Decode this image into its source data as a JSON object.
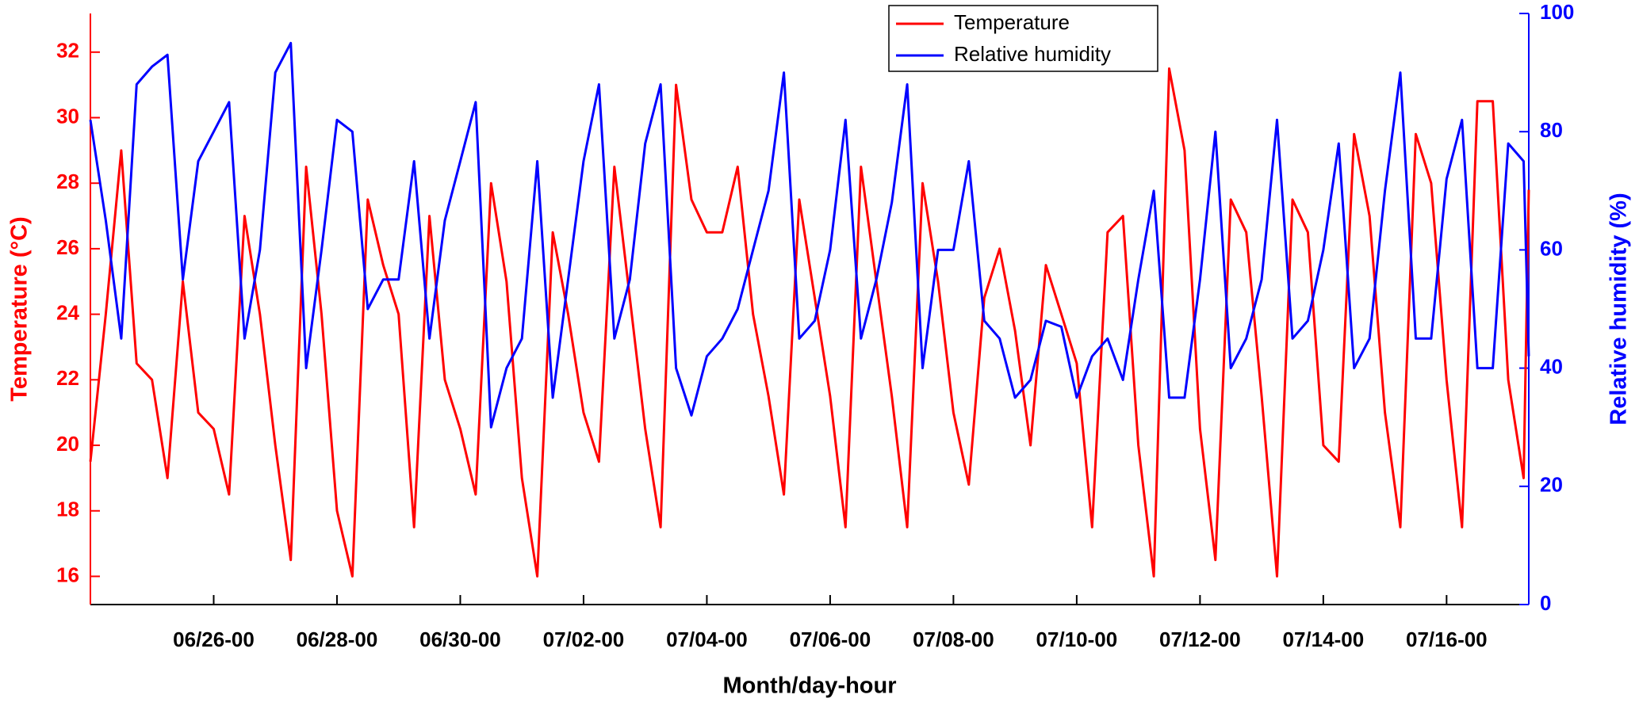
{
  "chart_data": {
    "type": "line",
    "x_label": "Month/day-hour",
    "y_label": "Temperature (°C)",
    "y2_label": "Relative humidity (%)",
    "x": [
      "06/24-00",
      "06/24-06",
      "06/24-12",
      "06/24-18",
      "06/25-00",
      "06/25-06",
      "06/25-12",
      "06/25-18",
      "06/26-00",
      "06/26-06",
      "06/26-12",
      "06/26-18",
      "06/27-00",
      "06/27-06",
      "06/27-12",
      "06/27-18",
      "06/28-00",
      "06/28-06",
      "06/28-12",
      "06/28-18",
      "06/29-00",
      "06/29-06",
      "06/29-12",
      "06/29-18",
      "06/30-00",
      "06/30-06",
      "06/30-12",
      "06/30-18",
      "07/01-00",
      "07/01-06",
      "07/01-12",
      "07/01-18",
      "07/02-00",
      "07/02-06",
      "07/02-12",
      "07/02-18",
      "07/03-00",
      "07/03-06",
      "07/03-12",
      "07/03-18",
      "07/04-00",
      "07/04-06",
      "07/04-12",
      "07/04-18",
      "07/05-00",
      "07/05-06",
      "07/05-12",
      "07/05-18",
      "07/06-00",
      "07/06-06",
      "07/06-12",
      "07/06-18",
      "07/07-00",
      "07/07-06",
      "07/07-12",
      "07/07-18",
      "07/08-00",
      "07/08-06",
      "07/08-12",
      "07/08-18",
      "07/09-00",
      "07/09-06",
      "07/09-12",
      "07/09-18",
      "07/10-00",
      "07/10-06",
      "07/10-12",
      "07/10-18",
      "07/11-00",
      "07/11-06",
      "07/11-12",
      "07/11-18",
      "07/12-00",
      "07/12-06",
      "07/12-12",
      "07/12-18",
      "07/13-00",
      "07/13-06",
      "07/13-12",
      "07/13-18",
      "07/14-00",
      "07/14-06",
      "07/14-12",
      "07/14-18",
      "07/15-00",
      "07/15-06",
      "07/15-12",
      "07/15-18",
      "07/16-00",
      "07/16-06",
      "07/16-12",
      "07/16-18",
      "07/17-00",
      "07/17-06",
      "07/17-08"
    ],
    "series": [
      {
        "name": "Temperature",
        "color": "#ff0000",
        "axis": "y",
        "values": [
          19.5,
          24,
          29,
          22.5,
          22,
          19,
          25,
          21,
          20.5,
          18.5,
          27,
          24,
          20,
          16.5,
          28.5,
          24,
          18,
          16,
          27.5,
          25.5,
          24,
          17.5,
          27,
          22,
          20.5,
          18.5,
          28,
          25,
          19,
          16,
          26.5,
          24,
          21,
          19.5,
          28.5,
          24.5,
          20.5,
          17.5,
          31,
          27.5,
          26.5,
          26.5,
          28.5,
          24,
          21.5,
          18.5,
          27.5,
          24.5,
          21.5,
          17.5,
          28.5,
          25,
          21.5,
          17.5,
          28,
          25,
          21,
          18.8,
          24.5,
          26,
          23.5,
          20,
          25.5,
          24,
          22.5,
          17.5,
          26.5,
          27,
          20,
          16,
          31.5,
          29,
          20.5,
          16.5,
          27.5,
          26.5,
          21.5,
          16,
          27.5,
          26.5,
          20,
          19.5,
          29.5,
          27,
          21,
          17.5,
          29.5,
          28,
          22,
          17.5,
          30.5,
          30.5,
          22,
          19,
          27.8
        ]
      },
      {
        "name": "Relative humidity",
        "color": "#0000ff",
        "axis": "y2",
        "values": [
          82,
          65,
          45,
          88,
          91,
          93,
          55,
          75,
          80,
          85,
          45,
          60,
          90,
          95,
          40,
          60,
          82,
          80,
          50,
          55,
          55,
          75,
          45,
          65,
          75,
          85,
          30,
          40,
          45,
          75,
          35,
          55,
          75,
          88,
          45,
          55,
          78,
          88,
          40,
          32,
          42,
          45,
          50,
          60,
          70,
          90,
          45,
          48,
          60,
          82,
          45,
          55,
          68,
          88,
          40,
          60,
          60,
          75,
          48,
          45,
          35,
          38,
          48,
          47,
          35,
          42,
          45,
          38,
          55,
          70,
          35,
          35,
          55,
          80,
          40,
          45,
          55,
          82,
          45,
          48,
          60,
          78,
          40,
          45,
          70,
          90,
          45,
          45,
          72,
          82,
          40,
          40,
          78,
          75,
          42
        ]
      }
    ],
    "xlim": [
      "06/24-00",
      "07/17-08"
    ],
    "xticks": [
      "06/26-00",
      "06/28-00",
      "06/30-00",
      "07/02-00",
      "07/04-00",
      "07/06-00",
      "07/08-00",
      "07/10-00",
      "07/12-00",
      "07/14-00",
      "07/16-00"
    ],
    "ylim": [
      15.14,
      33.18
    ],
    "yticks": [
      16,
      18,
      20,
      22,
      24,
      26,
      28,
      30,
      32
    ],
    "y2lim": [
      0,
      100
    ],
    "y2ticks": [
      0,
      20,
      40,
      60,
      80,
      100
    ]
  }
}
